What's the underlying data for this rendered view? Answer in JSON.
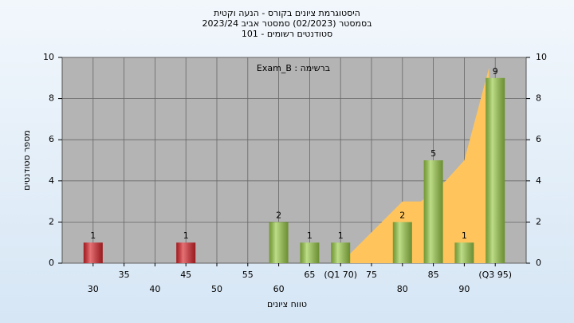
{
  "chart_data": {
    "type": "bar",
    "title": "היסטוגרמת ציונים בקורס - הנעה וקטית",
    "subtitle": "בסמסטר  (02/2023)  סמסטר אביב  2023/24",
    "subtitle2": "סטודנטים רשומים - 101",
    "annotation": "Exam_B : ברשימה",
    "x_label": "טווח ציונים",
    "y_label": "מספר סטודנטים",
    "categories": [
      "30",
      "35",
      "40",
      "45",
      "50",
      "55",
      "60",
      "65",
      "(Q1 70)",
      "75",
      "80",
      "85",
      "90",
      "(Q3 95)"
    ],
    "values": [
      1,
      0,
      0,
      1,
      0,
      0,
      2,
      1,
      1,
      0,
      2,
      5,
      1,
      9
    ],
    "colors": [
      "#d9262c",
      "#9acb48",
      "#9acb48",
      "#d9262c",
      "#9acb48",
      "#9acb48",
      "#9acb48",
      "#9acb48",
      "#9acb48",
      "#9acb48",
      "#9acb48",
      "#9acb48",
      "#9acb48",
      "#9acb48"
    ],
    "area": {
      "x": [
        70,
        80,
        83,
        87,
        90,
        94
      ],
      "values": [
        0,
        3,
        3,
        4,
        5,
        9.5
      ],
      "color": "#ffc55c"
    },
    "ylim": [
      0,
      10
    ],
    "yticks": [
      0,
      2,
      4,
      6,
      8,
      10
    ],
    "y2lim": [
      0,
      10
    ],
    "y2ticks": [
      0,
      2,
      4,
      6,
      8,
      10
    ],
    "grid": true
  }
}
